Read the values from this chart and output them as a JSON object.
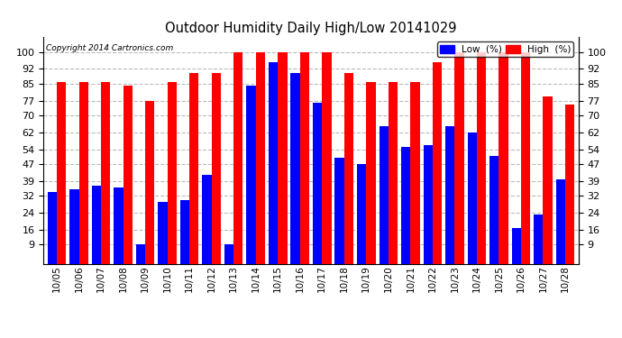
{
  "title": "Outdoor Humidity Daily High/Low 20141029",
  "copyright": "Copyright 2014 Cartronics.com",
  "categories": [
    "10/05",
    "10/06",
    "10/07",
    "10/08",
    "10/09",
    "10/10",
    "10/11",
    "10/12",
    "10/13",
    "10/14",
    "10/15",
    "10/16",
    "10/17",
    "10/18",
    "10/19",
    "10/20",
    "10/21",
    "10/22",
    "10/23",
    "10/24",
    "10/25",
    "10/26",
    "10/27",
    "10/28"
  ],
  "high_values": [
    86,
    86,
    86,
    84,
    77,
    86,
    90,
    90,
    100,
    100,
    100,
    100,
    100,
    90,
    86,
    86,
    86,
    95,
    100,
    100,
    100,
    100,
    79,
    75
  ],
  "low_values": [
    34,
    35,
    37,
    36,
    9,
    29,
    30,
    42,
    9,
    84,
    95,
    90,
    76,
    50,
    47,
    65,
    55,
    56,
    65,
    62,
    51,
    17,
    23,
    40
  ],
  "bar_color_high": "#ff0000",
  "bar_color_low": "#0000ff",
  "bg_color": "#ffffff",
  "grid_color": "#aaaaaa",
  "yticks": [
    9,
    16,
    24,
    32,
    39,
    47,
    54,
    62,
    70,
    77,
    85,
    92,
    100
  ],
  "ymin": 0,
  "ymax": 107,
  "legend_low_label": "Low  (%)",
  "legend_high_label": "High  (%)"
}
